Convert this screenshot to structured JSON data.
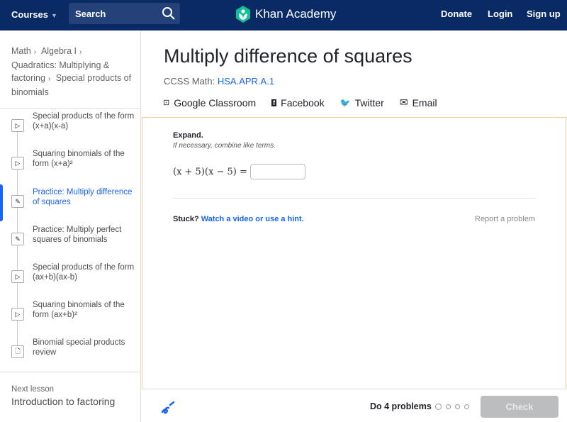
{
  "header": {
    "courses": "Courses",
    "search_placeholder": "Search",
    "logo": "Khan Academy",
    "donate": "Donate",
    "login": "Login",
    "signup": "Sign up",
    "brand_color": "#0a2a66",
    "logo_color": "#14bf96"
  },
  "breadcrumb": [
    "Math",
    "Algebra I",
    "Quadratics: Multiplying & factoring",
    "Special products of binomials"
  ],
  "sidebar": {
    "items": [
      {
        "label": "Special products of the form (x+a)(x-a)",
        "icon": "play-icon"
      },
      {
        "label": "Squaring binomials of the form (x+a)²",
        "icon": "play-icon"
      },
      {
        "label": "Practice: Multiply difference of squares",
        "icon": "pencil-icon",
        "active": true
      },
      {
        "label": "Practice: Multiply perfect squares of binomials",
        "icon": "pencil-icon"
      },
      {
        "label": "Special products of the form (ax+b)(ax-b)",
        "icon": "play-icon"
      },
      {
        "label": "Squaring binomials of the form (ax+b)²",
        "icon": "play-icon"
      },
      {
        "label": "Binomial special products review",
        "icon": "article-icon"
      }
    ],
    "next_label": "Next lesson",
    "next_title": "Introduction to factoring"
  },
  "main": {
    "title": "Multiply difference of squares",
    "ccss_label": "CCSS Math:",
    "ccss_code": "HSA.APR.A.1",
    "share": {
      "classroom": "Google Classroom",
      "facebook": "Facebook",
      "twitter": "Twitter",
      "email": "Email"
    }
  },
  "exercise": {
    "heading": "Expand.",
    "sub": "If necessary, combine like terms.",
    "equation": "(x + 5)(x − 5) =",
    "answer": "",
    "stuck": "Stuck?",
    "hint_link": "Watch a video or use a hint.",
    "report": "Report a problem"
  },
  "footer": {
    "do": "Do 4 problems",
    "problems_total": 4,
    "problems_done": 0,
    "check": "Check"
  }
}
